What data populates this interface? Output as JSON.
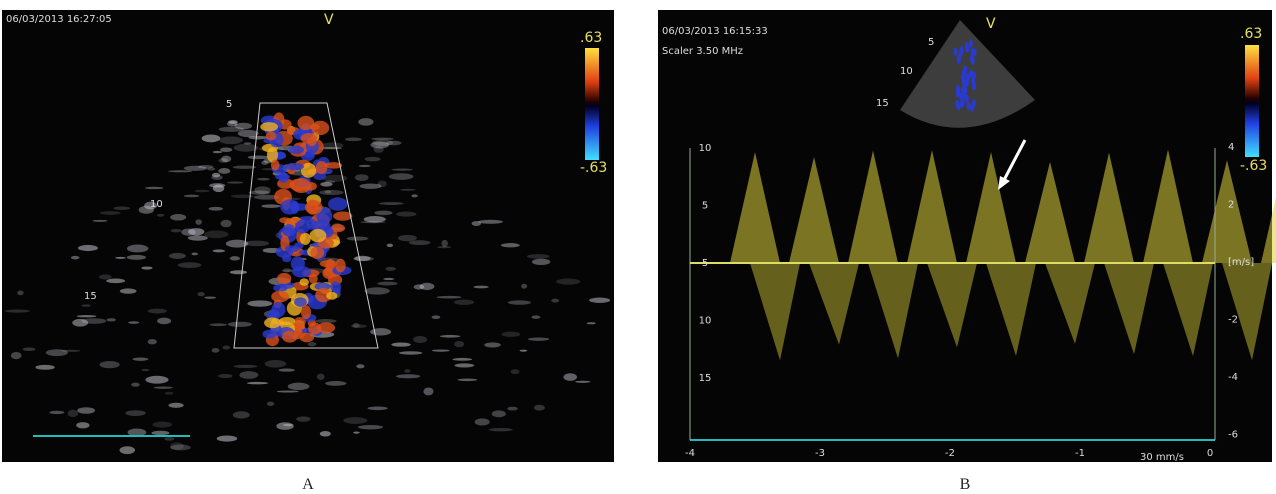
{
  "panels": [
    {
      "caption": "A",
      "timestamp": "06/03/2013 16:27:05",
      "marker": "V",
      "scale_top": ".63",
      "scale_bottom": "-.63",
      "depths": [
        "5",
        "10",
        "15"
      ]
    },
    {
      "caption": "B",
      "timestamp": "06/03/2013 16:15:33",
      "probe": "Scaler 3.50 MHz",
      "marker": "V",
      "scale_top": ".63",
      "scale_bottom": "-.63",
      "depths": [
        "5",
        "10",
        "15"
      ],
      "left_axis": [
        "10",
        "5",
        "5",
        "10",
        "15"
      ],
      "right_axis": [
        "4",
        "2",
        "[m/s]",
        "-2",
        "-4",
        "-6"
      ],
      "time_axis": [
        "-4",
        "-3",
        "-2",
        "-1",
        "0"
      ],
      "sweep": "30 mm/s"
    }
  ]
}
